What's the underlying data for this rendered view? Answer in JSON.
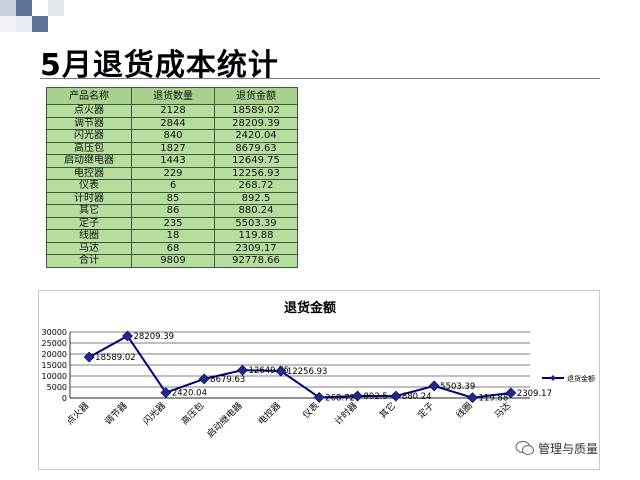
{
  "page": {
    "title": "5月退货成本统计"
  },
  "table": {
    "headers": [
      "产品名称",
      "退货数量",
      "退货金额"
    ],
    "rows": [
      [
        "点火器",
        "2128",
        "18589.02"
      ],
      [
        "调节器",
        "2844",
        "28209.39"
      ],
      [
        "闪光器",
        "840",
        "2420.04"
      ],
      [
        "高压包",
        "1827",
        "8679.63"
      ],
      [
        "启动继电器",
        "1443",
        "12649.75"
      ],
      [
        "电控器",
        "229",
        "12256.93"
      ],
      [
        "仪表",
        "6",
        "268.72"
      ],
      [
        "计时器",
        "85",
        "892.5"
      ],
      [
        "其它",
        "86",
        "880.24"
      ],
      [
        "定子",
        "235",
        "5503.39"
      ],
      [
        "线圈",
        "18",
        "119.88"
      ],
      [
        "马达",
        "68",
        "2309.17"
      ],
      [
        "合计",
        "9809",
        "92778.66"
      ]
    ]
  },
  "chart_data": {
    "type": "line",
    "title": "退货金额",
    "categories": [
      "点火器",
      "调节器",
      "闪光器",
      "高压包",
      "启动继电器",
      "电控器",
      "仪表",
      "计时器",
      "其它",
      "定子",
      "线圈",
      "马达"
    ],
    "series": [
      {
        "name": "退货金额",
        "values": [
          18589.02,
          28209.39,
          2420.04,
          8679.63,
          12649.75,
          12256.93,
          268.72,
          892.5,
          880.24,
          5503.39,
          119.88,
          2309.17
        ]
      }
    ],
    "data_labels": [
      "18589.02",
      "28209.39",
      "2420.04",
      "8679.63",
      "12649.75",
      "12256.93",
      "268.72",
      "892.5",
      "880.24",
      "5503.39",
      "119.88",
      "2309.17"
    ],
    "yticks": [
      "0",
      "5000",
      "10000",
      "15000",
      "20000",
      "25000",
      "30000"
    ],
    "ylim": [
      0,
      30000
    ],
    "grid": true,
    "legend": "right",
    "colors": {
      "line": "#000080",
      "marker": "#1f2a8a",
      "grid": "#000000"
    }
  },
  "watermark": {
    "text": "管理与质量",
    "icon": "wechat-icon"
  }
}
